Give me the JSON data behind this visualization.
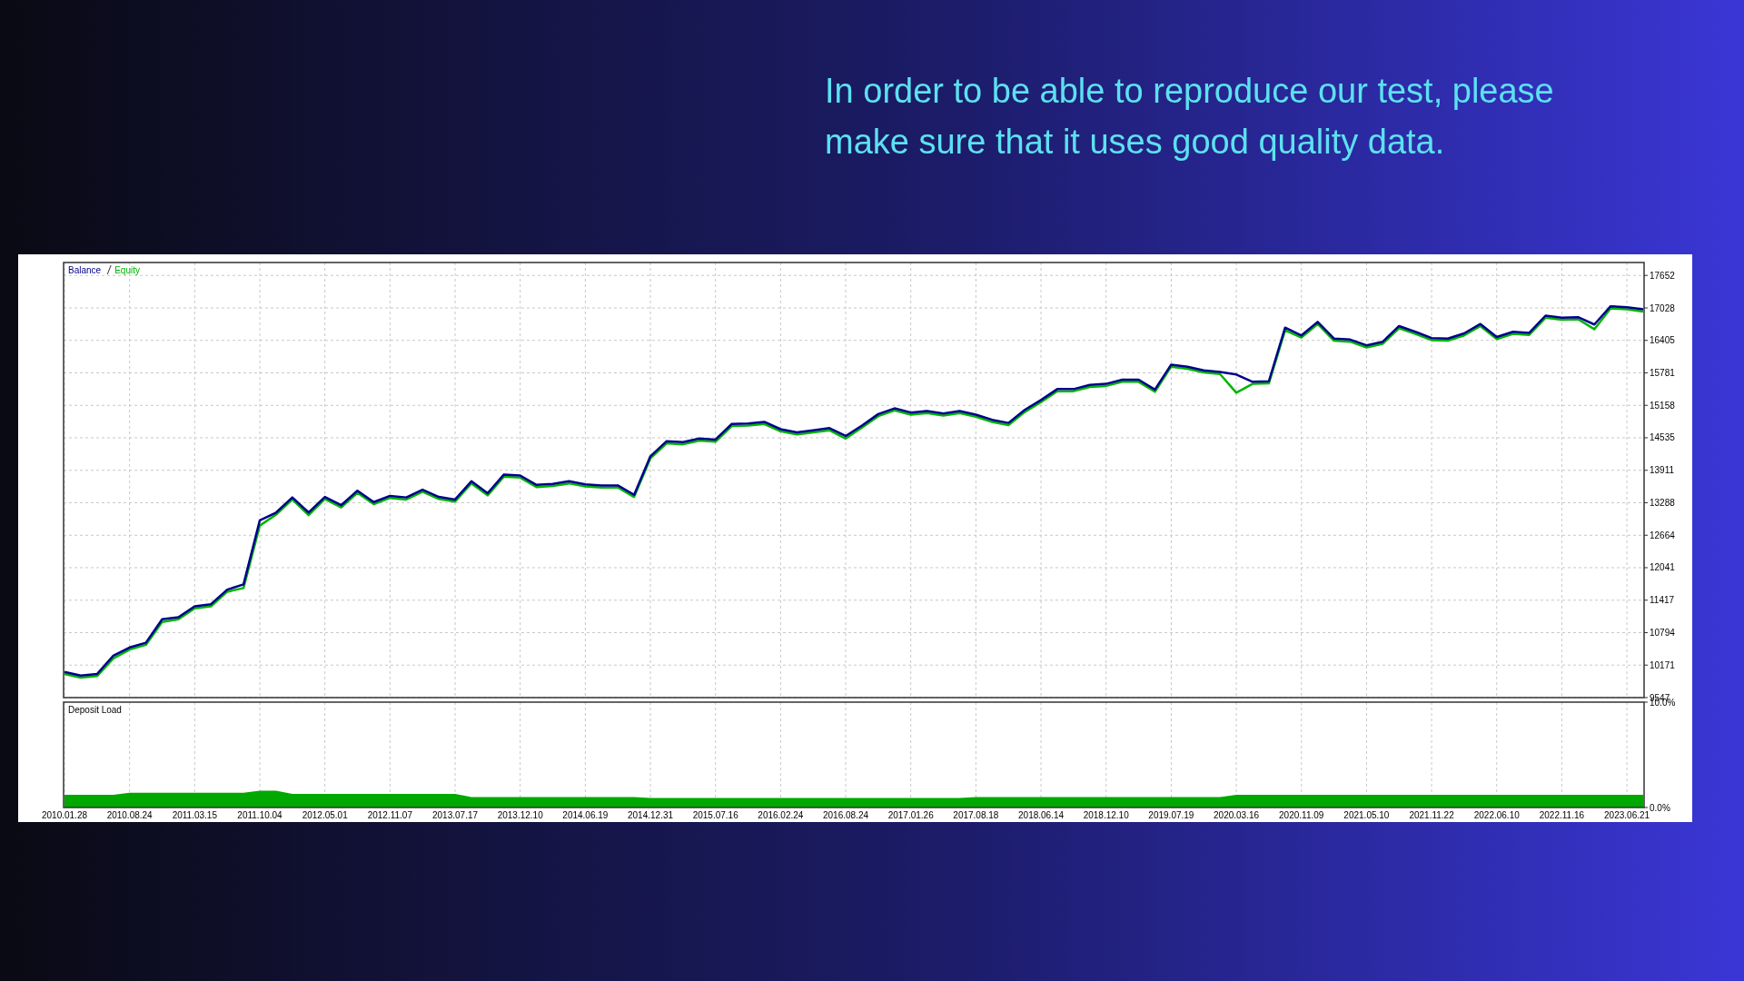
{
  "chart_data": [
    {
      "type": "line",
      "title": "In order to be able to reproduce our test, please make sure that it uses good quality data.",
      "ylim": [
        9547,
        17900
      ],
      "categories": [
        "2010.01.28",
        null,
        null,
        null,
        "2010.08.24",
        null,
        null,
        null,
        "2011.03.15",
        null,
        null,
        null,
        "2011.10.04",
        null,
        null,
        null,
        "2012.05.01",
        null,
        null,
        null,
        "2012.11.07",
        null,
        null,
        null,
        "2013.07.17",
        null,
        null,
        null,
        "2013.12.10",
        null,
        null,
        null,
        "2014.06.19",
        null,
        null,
        null,
        "2014.12.31",
        null,
        null,
        null,
        "2015.07.16",
        null,
        null,
        null,
        "2016.02.24",
        null,
        null,
        null,
        "2016.08.24",
        null,
        null,
        null,
        "2017.01.26",
        null,
        null,
        null,
        "2017.08.18",
        null,
        null,
        null,
        "2018.06.14",
        null,
        null,
        null,
        "2018.12.10",
        null,
        null,
        null,
        "2019.07.19",
        null,
        null,
        null,
        "2020.03.16",
        null,
        null,
        null,
        "2020.11.09",
        null,
        null,
        null,
        "2021.05.10",
        null,
        null,
        null,
        "2021.11.22",
        null,
        null,
        null,
        "2022.06.10",
        null,
        null,
        null,
        "2022.11.16",
        null,
        null,
        null,
        "2023.06.21",
        null
      ],
      "yticks": [
        9547,
        10171,
        10794,
        11417,
        12041,
        12664,
        13288,
        13911,
        14535,
        15158,
        15781,
        16405,
        17028,
        17652
      ],
      "tick_labels": "y",
      "grid": true,
      "legend": "top left",
      "series": [
        {
          "name": "Equity",
          "color": "#00b400",
          "values": [
            10000,
            9930,
            9960,
            10300,
            10470,
            10560,
            11000,
            11050,
            11260,
            11300,
            11580,
            11650,
            12850,
            13060,
            13350,
            13050,
            13360,
            13200,
            13480,
            13260,
            13380,
            13350,
            13500,
            13360,
            13310,
            13660,
            13430,
            13790,
            13770,
            13590,
            13610,
            13660,
            13600,
            13580,
            13580,
            13400,
            14140,
            14430,
            14410,
            14480,
            14460,
            14760,
            14770,
            14800,
            14660,
            14600,
            14640,
            14680,
            14520,
            14730,
            14950,
            15060,
            14980,
            15010,
            14960,
            15010,
            14940,
            14840,
            14780,
            15030,
            15220,
            15430,
            15430,
            15510,
            15530,
            15610,
            15610,
            15420,
            15900,
            15860,
            15790,
            15760,
            15400,
            15570,
            15580,
            16600,
            16460,
            16720,
            16400,
            16380,
            16270,
            16340,
            16640,
            16530,
            16410,
            16400,
            16500,
            16680,
            16430,
            16530,
            16510,
            16840,
            16800,
            16810,
            16620,
            17020,
            17000,
            16960
          ]
        },
        {
          "name": "Balance",
          "color": "#00008c",
          "values": [
            10040,
            9970,
            10000,
            10350,
            10510,
            10600,
            11050,
            11090,
            11300,
            11340,
            11620,
            11720,
            12950,
            13100,
            13390,
            13100,
            13400,
            13240,
            13520,
            13300,
            13420,
            13390,
            13540,
            13400,
            13350,
            13700,
            13470,
            13830,
            13810,
            13630,
            13650,
            13700,
            13640,
            13620,
            13620,
            13440,
            14180,
            14470,
            14450,
            14520,
            14500,
            14800,
            14810,
            14840,
            14700,
            14640,
            14680,
            14720,
            14570,
            14770,
            14990,
            15100,
            15020,
            15050,
            15000,
            15050,
            14980,
            14880,
            14820,
            15070,
            15260,
            15470,
            15470,
            15550,
            15570,
            15650,
            15650,
            15460,
            15940,
            15900,
            15830,
            15800,
            15750,
            15610,
            15620,
            16650,
            16500,
            16760,
            16440,
            16420,
            16310,
            16380,
            16680,
            16570,
            16450,
            16440,
            16540,
            16720,
            16470,
            16570,
            16550,
            16880,
            16840,
            16850,
            16710,
            17060,
            17040,
            17000
          ]
        }
      ]
    },
    {
      "type": "area",
      "title": "Deposit Load",
      "ylim": [
        0,
        10
      ],
      "categories": [
        "2010.01.28",
        null,
        null,
        null,
        "2010.08.24",
        null,
        null,
        null,
        "2011.03.15",
        null,
        null,
        null,
        "2011.10.04",
        null,
        null,
        null,
        "2012.05.01",
        null,
        null,
        null,
        "2012.11.07",
        null,
        null,
        null,
        "2013.07.17",
        null,
        null,
        null,
        "2013.12.10",
        null,
        null,
        null,
        "2014.06.19",
        null,
        null,
        null,
        "2014.12.31",
        null,
        null,
        null,
        "2015.07.16",
        null,
        null,
        null,
        "2016.02.24",
        null,
        null,
        null,
        "2016.08.24",
        null,
        null,
        null,
        "2017.01.26",
        null,
        null,
        null,
        "2017.08.18",
        null,
        null,
        null,
        "2018.06.14",
        null,
        null,
        null,
        "2018.12.10",
        null,
        null,
        null,
        "2019.07.19",
        null,
        null,
        null,
        "2020.03.16",
        null,
        null,
        null,
        "2020.11.09",
        null,
        null,
        null,
        "2021.05.10",
        null,
        null,
        null,
        "2021.11.22",
        null,
        null,
        null,
        "2022.06.10",
        null,
        null,
        null,
        "2022.11.16",
        null,
        null,
        null,
        "2023.06.21",
        null
      ],
      "yticks": [
        {
          "value": 0,
          "label": "0.0%"
        },
        {
          "value": 10,
          "label": "10.0%"
        }
      ],
      "grid": "x",
      "series": [
        {
          "color": "#00a800",
          "values": [
            1.2,
            1.2,
            1.2,
            1.2,
            1.4,
            1.4,
            1.4,
            1.4,
            1.4,
            1.4,
            1.4,
            1.4,
            1.6,
            1.6,
            1.3,
            1.3,
            1.3,
            1.3,
            1.3,
            1.3,
            1.3,
            1.3,
            1.3,
            1.3,
            1.3,
            1.0,
            1.0,
            1.0,
            1.0,
            1.0,
            1.0,
            1.0,
            1.0,
            1.0,
            1.0,
            1.0,
            0.9,
            0.9,
            0.9,
            0.9,
            0.9,
            0.9,
            0.9,
            0.9,
            0.9,
            0.9,
            0.9,
            0.9,
            0.9,
            0.9,
            0.9,
            0.9,
            0.9,
            0.9,
            0.9,
            0.9,
            1.0,
            1.0,
            1.0,
            1.0,
            1.0,
            1.0,
            1.0,
            1.0,
            1.0,
            1.0,
            1.0,
            1.0,
            1.0,
            1.0,
            1.0,
            1.0,
            1.2,
            1.2,
            1.2,
            1.2,
            1.2,
            1.2,
            1.2,
            1.2,
            1.2,
            1.2,
            1.2,
            1.2,
            1.2,
            1.2,
            1.2,
            1.2,
            1.2,
            1.2,
            1.2,
            1.2,
            1.2,
            1.2,
            1.2,
            1.2,
            1.2,
            1.2
          ]
        }
      ]
    }
  ]
}
